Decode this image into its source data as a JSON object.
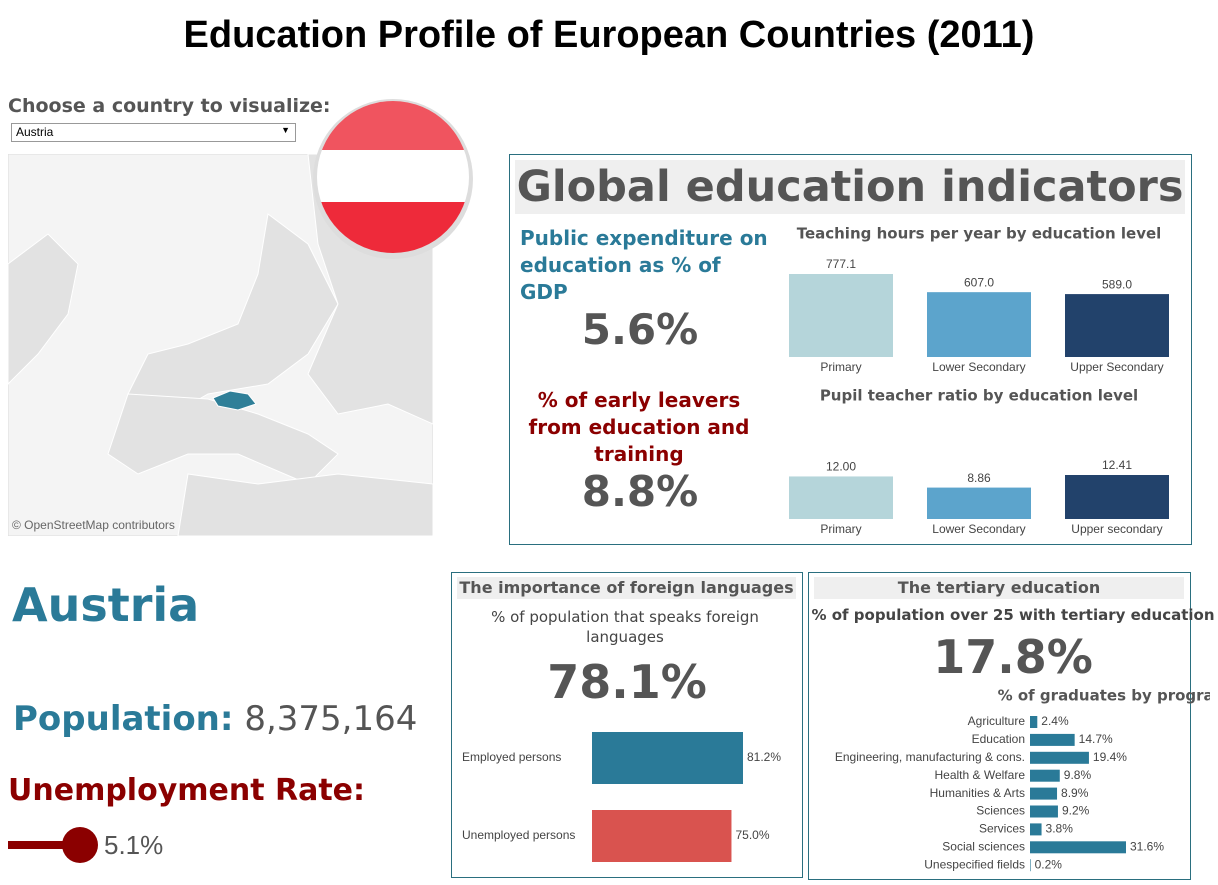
{
  "title": "Education Profile of European Countries (2011)",
  "selector": {
    "label": "Choose a country to visualize:",
    "value": "Austria"
  },
  "map": {
    "attribution": "© OpenStreetMap contributors"
  },
  "country": {
    "name": "Austria",
    "population_label": "Population:",
    "population": "8,375,164",
    "unemployment_label": "Unemployment Rate:",
    "unemployment_rate": "5.1%"
  },
  "global": {
    "title": "Global education indicators",
    "expenditure_label": "Public expenditure on education as % of GDP",
    "expenditure": "5.6%",
    "early_leavers_label": "% of early leavers from education and training",
    "early_leavers": "8.8%"
  },
  "languages": {
    "title": "The importance of foreign languages",
    "kpi_label": "% of population that speaks foreign languages",
    "kpi": "78.1%"
  },
  "tertiary": {
    "title": "The tertiary education",
    "kpi_label": "% of population over 25 with tertiary education",
    "kpi": "17.8%"
  },
  "chart_data": [
    {
      "type": "bar",
      "title": "Teaching hours per year by education level",
      "categories": [
        "Primary",
        "Lower Secondary",
        "Upper Secondary"
      ],
      "values": [
        777.1,
        607.0,
        589.0
      ],
      "value_labels": [
        "777.1",
        "607.0",
        "589.0"
      ],
      "colors": [
        "#b5d5da",
        "#5ca4cc",
        "#22426b"
      ]
    },
    {
      "type": "bar",
      "title": "Pupil teacher ratio by education level",
      "categories": [
        "Primary",
        "Lower Secondary",
        "Upper secondary"
      ],
      "values": [
        12.0,
        8.86,
        12.41
      ],
      "value_labels": [
        "12.00",
        "8.86",
        "12.41"
      ],
      "colors": [
        "#b5d5da",
        "#5ca4cc",
        "#22426b"
      ]
    },
    {
      "type": "bar",
      "horizontal": true,
      "categories": [
        "Employed persons",
        "Unemployed persons"
      ],
      "values": [
        81.2,
        75.0
      ],
      "value_labels": [
        "81.2%",
        "75.0%"
      ],
      "colors": [
        "#2a7a98",
        "#d9534f"
      ]
    },
    {
      "type": "bar",
      "horizontal": true,
      "title": "% of graduates by program type",
      "categories": [
        "Agriculture",
        "Education",
        "Engineering, manufacturing & cons.",
        "Health & Welfare",
        "Humanities & Arts",
        "Sciences",
        "Services",
        "Social sciences",
        "Unespecified fields"
      ],
      "values": [
        2.4,
        14.7,
        19.4,
        9.8,
        8.9,
        9.2,
        3.8,
        31.6,
        0.2
      ],
      "value_labels": [
        "2.4%",
        "14.7%",
        "19.4%",
        "9.8%",
        "8.9%",
        "9.2%",
        "3.8%",
        "31.6%",
        "0.2%"
      ],
      "colors": [
        "#2a7a98",
        "#2a7a98",
        "#2a7a98",
        "#2a7a98",
        "#2a7a98",
        "#2a7a98",
        "#2a7a98",
        "#2a7a98",
        "#2a7a98"
      ]
    }
  ]
}
